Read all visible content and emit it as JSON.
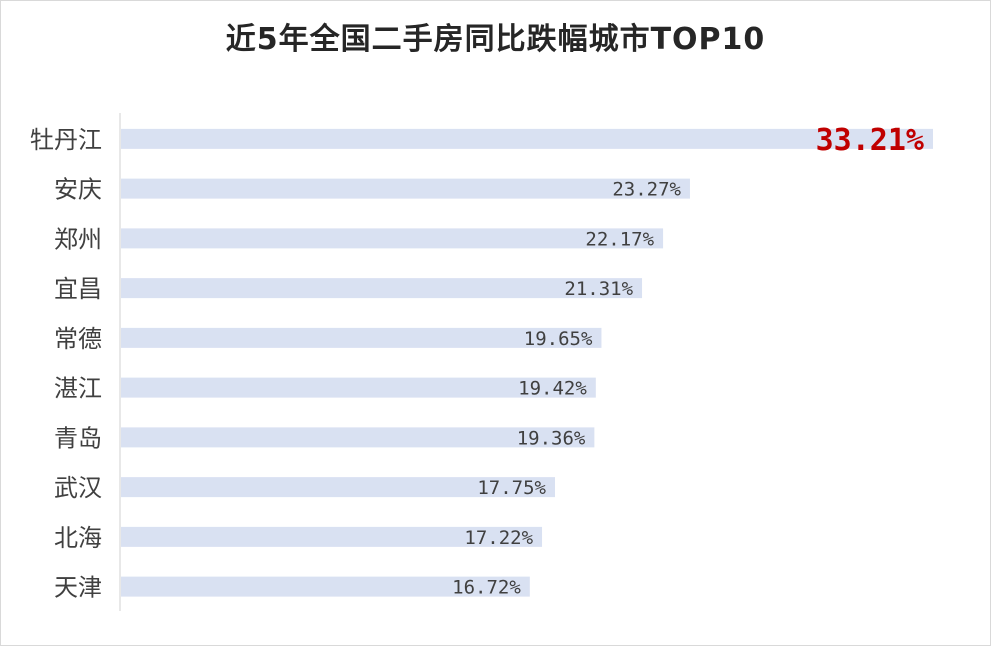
{
  "chart_data": {
    "type": "bar",
    "orientation": "horizontal",
    "title": "近5年全国二手房同比跌幅城市TOP10",
    "categories": [
      "牡丹江",
      "安庆",
      "郑州",
      "宜昌",
      "常德",
      "湛江",
      "青岛",
      "武汉",
      "北海",
      "天津"
    ],
    "values": [
      33.21,
      23.27,
      22.17,
      21.31,
      19.65,
      19.42,
      19.36,
      17.75,
      17.22,
      16.72
    ],
    "value_labels": [
      "33.21%",
      "23.27%",
      "22.17%",
      "21.31%",
      "19.65%",
      "19.42%",
      "19.36%",
      "17.75%",
      "17.22%",
      "16.72%"
    ],
    "unit": "%",
    "xlim": [
      0,
      34
    ],
    "grid": false,
    "bar_color": "#d9e1f2",
    "label_color": "#404040",
    "highlight_color": "#c00000",
    "highlight_index": 0
  }
}
